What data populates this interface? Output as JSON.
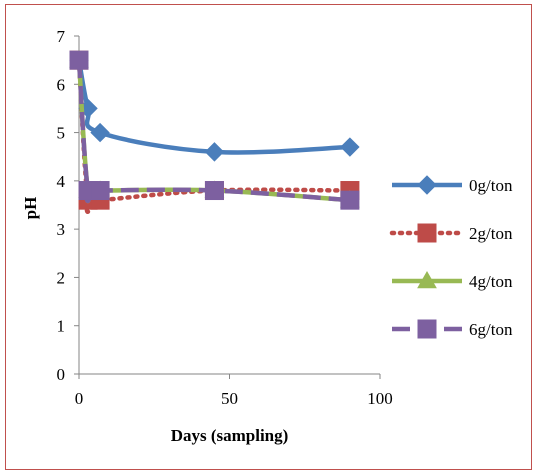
{
  "chart_data": {
    "type": "line",
    "xlabel": "Days (sampling)",
    "ylabel": "pH",
    "xlim": [
      0,
      100
    ],
    "ylim": [
      0,
      7
    ],
    "xticks": [
      0,
      50,
      100
    ],
    "yticks": [
      0,
      1,
      2,
      3,
      4,
      5,
      6,
      7
    ],
    "grid": false,
    "legend_position": "right",
    "series": [
      {
        "name": "0g/ton",
        "color": "#4a7ebb",
        "dash": "solid",
        "marker": "diamond",
        "points": [
          [
            0,
            6.5
          ],
          [
            3,
            5.5
          ],
          [
            7,
            5.0
          ],
          [
            45,
            4.6
          ],
          [
            90,
            4.7
          ]
        ]
      },
      {
        "name": "2g/ton",
        "color": "#be4b48",
        "dash": "dotted",
        "marker": "square",
        "points": [
          [
            0,
            6.5
          ],
          [
            3,
            3.6
          ],
          [
            7,
            3.6
          ],
          [
            45,
            3.8
          ],
          [
            90,
            3.8
          ]
        ]
      },
      {
        "name": "4g/ton",
        "color": "#98b954",
        "dash": "solid",
        "marker": "triangle",
        "points": [
          [
            0,
            6.5
          ],
          [
            3,
            3.8
          ],
          [
            7,
            3.8
          ],
          [
            45,
            3.8
          ],
          [
            90,
            3.6
          ]
        ]
      },
      {
        "name": "6g/ton",
        "color": "#7d60a0",
        "dash": "dashed",
        "marker": "square",
        "points": [
          [
            0,
            6.5
          ],
          [
            3,
            3.8
          ],
          [
            7,
            3.8
          ],
          [
            45,
            3.8
          ],
          [
            90,
            3.6
          ]
        ]
      }
    ]
  }
}
